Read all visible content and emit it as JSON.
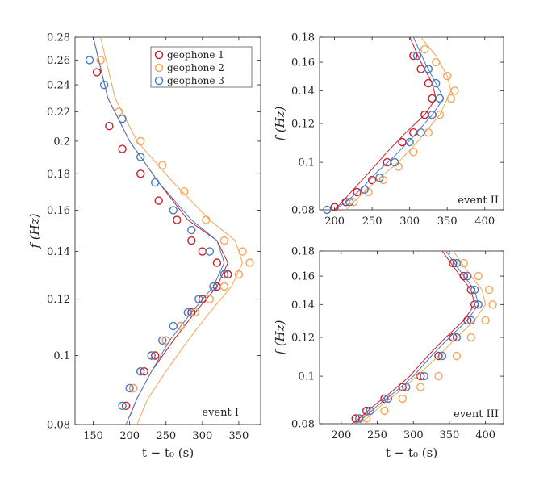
{
  "colors": {
    "geophone_1": "#c8202a",
    "geophone_2": "#f5a55a",
    "geophone_3": "#4a7cc0"
  },
  "legend": {
    "entries": [
      "geophone 1",
      "geophone 2",
      "geophone 3"
    ]
  },
  "chart_data": [
    {
      "type": "scatter",
      "event_label": "event I",
      "xlabel": "t − t₀ (s)",
      "ylabel": "f (Hz)",
      "y_scale": "log",
      "xlim": [
        125,
        380
      ],
      "ylim": [
        0.08,
        0.28
      ],
      "xticks": [
        150,
        200,
        250,
        300,
        350
      ],
      "xtick_labels": [
        "150",
        "200",
        "250",
        "300",
        "350"
      ],
      "yticks": [
        0.08,
        0.1,
        0.12,
        0.14,
        0.16,
        0.18,
        0.2,
        0.22,
        0.24,
        0.26,
        0.28
      ],
      "ytick_labels": [
        "0.08",
        "0.1",
        "0.12",
        "0.14",
        "0.16",
        "0.18",
        "0.2",
        "0.22",
        "0.24",
        "0.26",
        "0.28"
      ],
      "series": [
        {
          "name": "geophone 1",
          "color": "#c8202a",
          "points": [
            [
              155,
              0.25
            ],
            [
              172,
              0.21
            ],
            [
              190,
              0.195
            ],
            [
              215,
              0.18
            ],
            [
              240,
              0.165
            ],
            [
              265,
              0.155
            ],
            [
              285,
              0.145
            ],
            [
              300,
              0.14
            ],
            [
              320,
              0.135
            ],
            [
              335,
              0.13
            ],
            [
              320,
              0.125
            ],
            [
              300,
              0.12
            ],
            [
              285,
              0.115
            ],
            [
              270,
              0.11
            ],
            [
              250,
              0.105
            ],
            [
              235,
              0.1
            ],
            [
              220,
              0.095
            ],
            [
              205,
              0.09
            ],
            [
              195,
              0.085
            ]
          ],
          "fit": [
            [
              150,
              0.28
            ],
            [
              170,
              0.23
            ],
            [
              200,
              0.2
            ],
            [
              240,
              0.175
            ],
            [
              280,
              0.155
            ],
            [
              320,
              0.145
            ],
            [
              335,
              0.135
            ],
            [
              320,
              0.125
            ],
            [
              290,
              0.115
            ],
            [
              260,
              0.105
            ],
            [
              230,
              0.095
            ],
            [
              210,
              0.087
            ],
            [
              200,
              0.082
            ]
          ]
        },
        {
          "name": "geophone 2",
          "color": "#f5a55a",
          "points": [
            [
              160,
              0.26
            ],
            [
              185,
              0.22
            ],
            [
              215,
              0.2
            ],
            [
              245,
              0.185
            ],
            [
              275,
              0.17
            ],
            [
              305,
              0.155
            ],
            [
              330,
              0.145
            ],
            [
              355,
              0.14
            ],
            [
              365,
              0.135
            ],
            [
              350,
              0.13
            ],
            [
              330,
              0.125
            ],
            [
              310,
              0.12
            ],
            [
              290,
              0.115
            ],
            [
              270,
              0.11
            ],
            [
              250,
              0.105
            ],
            [
              230,
              0.1
            ],
            [
              215,
              0.095
            ],
            [
              205,
              0.09
            ]
          ],
          "fit": [
            [
              160,
              0.28
            ],
            [
              180,
              0.23
            ],
            [
              210,
              0.2
            ],
            [
              260,
              0.175
            ],
            [
              310,
              0.155
            ],
            [
              345,
              0.145
            ],
            [
              355,
              0.135
            ],
            [
              340,
              0.125
            ],
            [
              310,
              0.115
            ],
            [
              280,
              0.105
            ],
            [
              250,
              0.095
            ],
            [
              225,
              0.087
            ],
            [
              210,
              0.08
            ]
          ]
        },
        {
          "name": "geophone 3",
          "color": "#4a7cc0",
          "points": [
            [
              145,
              0.26
            ],
            [
              165,
              0.24
            ],
            [
              190,
              0.215
            ],
            [
              215,
              0.19
            ],
            [
              235,
              0.175
            ],
            [
              260,
              0.16
            ],
            [
              285,
              0.15
            ],
            [
              310,
              0.14
            ],
            [
              330,
              0.13
            ],
            [
              315,
              0.125
            ],
            [
              295,
              0.12
            ],
            [
              280,
              0.115
            ],
            [
              260,
              0.11
            ],
            [
              245,
              0.105
            ],
            [
              230,
              0.1
            ],
            [
              215,
              0.095
            ],
            [
              200,
              0.09
            ],
            [
              190,
              0.085
            ]
          ],
          "fit": [
            [
              150,
              0.28
            ],
            [
              170,
              0.23
            ],
            [
              200,
              0.2
            ],
            [
              240,
              0.175
            ],
            [
              285,
              0.155
            ],
            [
              320,
              0.145
            ],
            [
              330,
              0.135
            ],
            [
              315,
              0.125
            ],
            [
              285,
              0.115
            ],
            [
              255,
              0.105
            ],
            [
              230,
              0.095
            ],
            [
              210,
              0.087
            ],
            [
              195,
              0.08
            ]
          ]
        }
      ]
    },
    {
      "type": "scatter",
      "event_label": "event II",
      "xlabel": "",
      "ylabel": "f (Hz)",
      "y_scale": "log",
      "xlim": [
        180,
        425
      ],
      "ylim": [
        0.08,
        0.18
      ],
      "xticks": [
        200,
        250,
        300,
        350,
        400
      ],
      "xtick_labels": [
        "200",
        "250",
        "300",
        "350",
        "400"
      ],
      "yticks": [
        0.08,
        0.1,
        0.12,
        0.14,
        0.16,
        0.18
      ],
      "ytick_labels": [
        "0.08",
        "0.1",
        "0.12",
        "0.14",
        "0.16",
        "0.18"
      ],
      "series": [
        {
          "name": "geophone 1",
          "color": "#c8202a",
          "points": [
            [
              305,
              0.165
            ],
            [
              315,
              0.155
            ],
            [
              325,
              0.145
            ],
            [
              330,
              0.135
            ],
            [
              320,
              0.125
            ],
            [
              305,
              0.115
            ],
            [
              290,
              0.11
            ],
            [
              270,
              0.1
            ],
            [
              250,
              0.092
            ],
            [
              230,
              0.087
            ],
            [
              215,
              0.083
            ],
            [
              200,
              0.081
            ]
          ],
          "fit": [
            [
              300,
              0.18
            ],
            [
              315,
              0.16
            ],
            [
              330,
              0.145
            ],
            [
              335,
              0.135
            ],
            [
              320,
              0.125
            ],
            [
              295,
              0.115
            ],
            [
              270,
              0.105
            ],
            [
              245,
              0.095
            ],
            [
              225,
              0.088
            ],
            [
              210,
              0.083
            ],
            [
              200,
              0.08
            ]
          ]
        },
        {
          "name": "geophone 2",
          "color": "#f5a55a",
          "points": [
            [
              320,
              0.17
            ],
            [
              335,
              0.16
            ],
            [
              350,
              0.15
            ],
            [
              360,
              0.14
            ],
            [
              355,
              0.135
            ],
            [
              340,
              0.125
            ],
            [
              325,
              0.115
            ],
            [
              305,
              0.105
            ],
            [
              285,
              0.098
            ],
            [
              265,
              0.092
            ],
            [
              245,
              0.087
            ],
            [
              225,
              0.083
            ]
          ],
          "fit": [
            [
              315,
              0.18
            ],
            [
              335,
              0.165
            ],
            [
              350,
              0.15
            ],
            [
              355,
              0.14
            ],
            [
              340,
              0.125
            ],
            [
              310,
              0.11
            ],
            [
              285,
              0.1
            ],
            [
              260,
              0.093
            ],
            [
              240,
              0.087
            ],
            [
              225,
              0.083
            ],
            [
              215,
              0.08
            ]
          ]
        },
        {
          "name": "geophone 3",
          "color": "#4a7cc0",
          "points": [
            [
              310,
              0.165
            ],
            [
              325,
              0.155
            ],
            [
              335,
              0.145
            ],
            [
              340,
              0.135
            ],
            [
              330,
              0.125
            ],
            [
              315,
              0.115
            ],
            [
              300,
              0.11
            ],
            [
              280,
              0.1
            ],
            [
              260,
              0.093
            ],
            [
              240,
              0.088
            ],
            [
              220,
              0.083
            ],
            [
              190,
              0.08
            ]
          ],
          "fit": [
            [
              305,
              0.18
            ],
            [
              320,
              0.16
            ],
            [
              340,
              0.14
            ],
            [
              345,
              0.135
            ],
            [
              330,
              0.125
            ],
            [
              305,
              0.113
            ],
            [
              280,
              0.103
            ],
            [
              255,
              0.095
            ],
            [
              235,
              0.088
            ],
            [
              215,
              0.083
            ],
            [
              200,
              0.08
            ]
          ]
        }
      ]
    },
    {
      "type": "scatter",
      "event_label": "event III",
      "xlabel": "t − t₀ (s)",
      "ylabel": "f (Hz)",
      "y_scale": "log",
      "xlim": [
        170,
        425
      ],
      "ylim": [
        0.08,
        0.18
      ],
      "xticks": [
        200,
        250,
        300,
        350,
        400
      ],
      "xtick_labels": [
        "200",
        "250",
        "300",
        "350",
        "400"
      ],
      "yticks": [
        0.08,
        0.1,
        0.12,
        0.14,
        0.16,
        0.18
      ],
      "ytick_labels": [
        "0.08",
        "0.1",
        "0.12",
        "0.14",
        "0.16",
        "0.18"
      ],
      "series": [
        {
          "name": "geophone 1",
          "color": "#c8202a",
          "points": [
            [
              355,
              0.17
            ],
            [
              370,
              0.16
            ],
            [
              380,
              0.15
            ],
            [
              385,
              0.14
            ],
            [
              375,
              0.13
            ],
            [
              355,
              0.12
            ],
            [
              335,
              0.11
            ],
            [
              310,
              0.1
            ],
            [
              285,
              0.095
            ],
            [
              260,
              0.09
            ],
            [
              235,
              0.085
            ],
            [
              220,
              0.082
            ]
          ],
          "fit": [
            [
              340,
              0.18
            ],
            [
              365,
              0.16
            ],
            [
              380,
              0.15
            ],
            [
              385,
              0.14
            ],
            [
              370,
              0.13
            ],
            [
              345,
              0.12
            ],
            [
              320,
              0.11
            ],
            [
              295,
              0.1
            ],
            [
              270,
              0.093
            ],
            [
              245,
              0.087
            ],
            [
              225,
              0.082
            ],
            [
              215,
              0.08
            ]
          ]
        },
        {
          "name": "geophone 2",
          "color": "#f5a55a",
          "points": [
            [
              370,
              0.17
            ],
            [
              390,
              0.16
            ],
            [
              405,
              0.15
            ],
            [
              410,
              0.14
            ],
            [
              400,
              0.13
            ],
            [
              380,
              0.12
            ],
            [
              360,
              0.11
            ],
            [
              335,
              0.1
            ],
            [
              310,
              0.095
            ],
            [
              285,
              0.09
            ],
            [
              260,
              0.085
            ],
            [
              235,
              0.082
            ]
          ],
          "fit": [
            [
              355,
              0.18
            ],
            [
              380,
              0.16
            ],
            [
              395,
              0.15
            ],
            [
              400,
              0.14
            ],
            [
              385,
              0.13
            ],
            [
              360,
              0.12
            ],
            [
              335,
              0.11
            ],
            [
              305,
              0.1
            ],
            [
              280,
              0.093
            ],
            [
              255,
              0.087
            ],
            [
              235,
              0.082
            ],
            [
              225,
              0.08
            ]
          ]
        },
        {
          "name": "geophone 3",
          "color": "#4a7cc0",
          "points": [
            [
              360,
              0.17
            ],
            [
              375,
              0.16
            ],
            [
              385,
              0.15
            ],
            [
              390,
              0.14
            ],
            [
              380,
              0.13
            ],
            [
              360,
              0.12
            ],
            [
              340,
              0.11
            ],
            [
              315,
              0.1
            ],
            [
              290,
              0.095
            ],
            [
              265,
              0.09
            ],
            [
              240,
              0.085
            ],
            [
              225,
              0.082
            ]
          ],
          "fit": [
            [
              345,
              0.18
            ],
            [
              370,
              0.16
            ],
            [
              385,
              0.15
            ],
            [
              390,
              0.14
            ],
            [
              375,
              0.13
            ],
            [
              350,
              0.12
            ],
            [
              325,
              0.11
            ],
            [
              300,
              0.1
            ],
            [
              275,
              0.093
            ],
            [
              250,
              0.087
            ],
            [
              230,
              0.082
            ],
            [
              220,
              0.08
            ]
          ]
        }
      ]
    }
  ]
}
